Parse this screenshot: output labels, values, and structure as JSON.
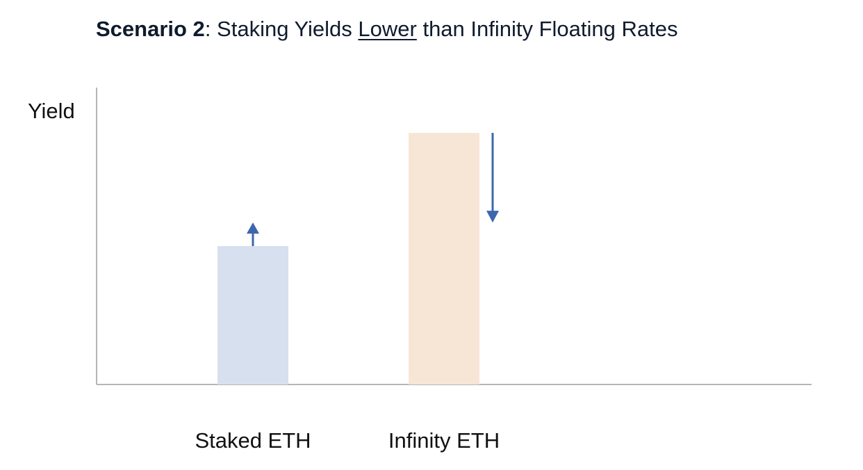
{
  "title": {
    "scenario": "Scenario 2",
    "colon": ": ",
    "pre": "Staking Yields ",
    "underlined": "Lower",
    "post": " than Infinity Floating Rates"
  },
  "chart_data": {
    "type": "bar",
    "ylabel": "Yield",
    "xlabel": "",
    "categories": [
      "Staked ETH",
      "Infinity ETH"
    ],
    "values": [
      0.55,
      1.0
    ],
    "ylim": [
      0,
      1.18
    ],
    "grid": false,
    "colors": [
      "#d6e0ef",
      "#f7e5d6"
    ],
    "annotations": [
      {
        "category": "Staked ETH",
        "type": "arrow",
        "direction": "up",
        "color": "#3d67ad"
      },
      {
        "category": "Infinity ETH",
        "type": "arrow",
        "direction": "down",
        "color": "#3d67ad"
      }
    ],
    "axis_color": "#b5b5b5"
  }
}
